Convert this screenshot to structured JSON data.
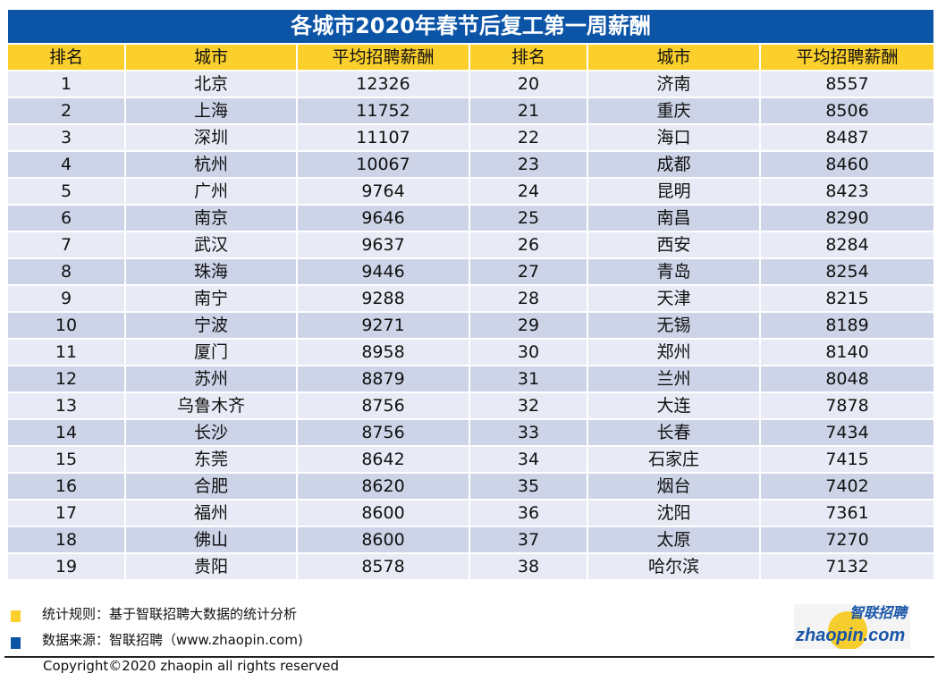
{
  "title": "各城市2020年春节后复工第一周薪酬",
  "headers": [
    "排名",
    "城市",
    "平均招聘薪酬",
    "排名",
    "城市",
    "平均招聘薪酬"
  ],
  "rows": [
    [
      "1",
      "北京",
      "12326",
      "20",
      "济南",
      "8557"
    ],
    [
      "2",
      "上海",
      "11752",
      "21",
      "重庆",
      "8506"
    ],
    [
      "3",
      "深圳",
      "11107",
      "22",
      "海口",
      "8487"
    ],
    [
      "4",
      "杭州",
      "10067",
      "23",
      "成都",
      "8460"
    ],
    [
      "5",
      "广州",
      "9764",
      "24",
      "昆明",
      "8423"
    ],
    [
      "6",
      "南京",
      "9646",
      "25",
      "南昌",
      "8290"
    ],
    [
      "7",
      "武汉",
      "9637",
      "26",
      "西安",
      "8284"
    ],
    [
      "8",
      "珠海",
      "9446",
      "27",
      "青岛",
      "8254"
    ],
    [
      "9",
      "南宁",
      "9288",
      "28",
      "天津",
      "8215"
    ],
    [
      "10",
      "宁波",
      "9271",
      "29",
      "无锡",
      "8189"
    ],
    [
      "11",
      "厦门",
      "8958",
      "30",
      "郑州",
      "8140"
    ],
    [
      "12",
      "苏州",
      "8879",
      "31",
      "兰州",
      "8048"
    ],
    [
      "13",
      "乌鲁木齐",
      "8756",
      "32",
      "大连",
      "7878"
    ],
    [
      "14",
      "长沙",
      "8756",
      "33",
      "长春",
      "7434"
    ],
    [
      "15",
      "东莞",
      "8642",
      "34",
      "石家庄",
      "7415"
    ],
    [
      "16",
      "合肥",
      "8620",
      "35",
      "烟台",
      "7402"
    ],
    [
      "17",
      "福州",
      "8600",
      "36",
      "沈阳",
      "7361"
    ],
    [
      "18",
      "佛山",
      "8600",
      "37",
      "太原",
      "7270"
    ],
    [
      "19",
      "贵阳",
      "8578",
      "38",
      "哈尔滨",
      "7132"
    ]
  ],
  "notes": {
    "rule": "统计规则：基于智联招聘大数据的统计分析",
    "source": "数据来源：智联招聘（www.zhaopin.com)"
  },
  "logo": {
    "cn": "智联招聘",
    "en": "zhaopin.com"
  },
  "copyright": "Copyright©2020 zhaopin all rights reserved",
  "colors": {
    "title_bg": "#0c55a6",
    "header_bg": "#fbcf2c",
    "row_light": "#e8ebf5",
    "row_dark": "#cdd4e7"
  }
}
